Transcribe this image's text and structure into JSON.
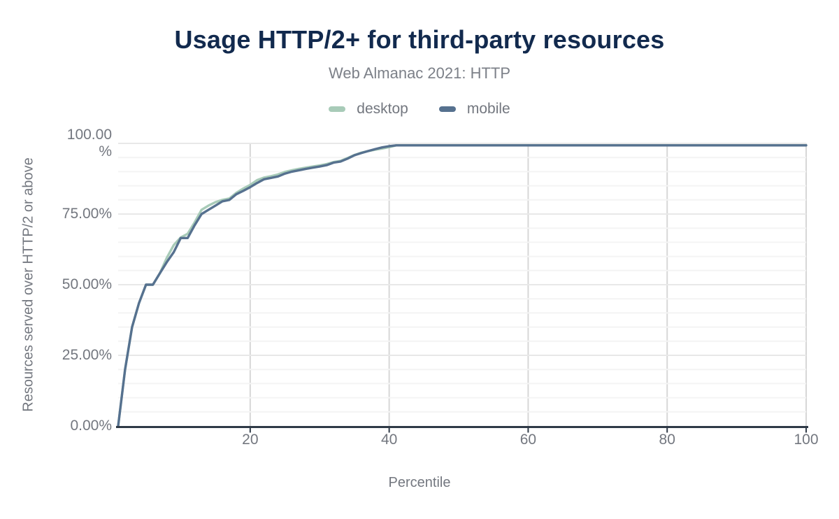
{
  "title": "Usage HTTP/2+ for third-party resources",
  "subtitle": "Web Almanac 2021: HTTP",
  "legend": [
    {
      "name": "desktop",
      "label": "desktop",
      "color": "#a8cbb8"
    },
    {
      "name": "mobile",
      "label": "mobile",
      "color": "#56718f"
    }
  ],
  "colors": {
    "title": "#122a4e",
    "muted_text": "#73777f",
    "axis_line": "#2f3a47",
    "gridline_vertical": "#d7d7d7",
    "gridline_major_h": "#e8e8e8",
    "gridline_minor_h": "#f4f4f4",
    "desktop": "#a8cbb8",
    "mobile": "#56718f"
  },
  "chart_data": {
    "type": "line",
    "title": "Usage HTTP/2+ for third-party resources",
    "subtitle": "Web Almanac 2021: HTTP",
    "xlabel": "Percentile",
    "ylabel": "Resources served over HTTP/2 or above",
    "xlim": [
      1,
      100
    ],
    "ylim": [
      0,
      100
    ],
    "grid": true,
    "legend_position": "top-center",
    "x_ticks": [
      20,
      40,
      60,
      80,
      100
    ],
    "y_ticks": [
      {
        "value": 0,
        "lines": [
          "0.00%"
        ]
      },
      {
        "value": 25,
        "lines": [
          "25.00%"
        ]
      },
      {
        "value": 50,
        "lines": [
          "50.00%"
        ]
      },
      {
        "value": 75,
        "lines": [
          "75.00%"
        ]
      },
      {
        "value": 100,
        "lines": [
          "100.00",
          "%"
        ]
      }
    ],
    "y_minor_step": 5,
    "x": [
      1,
      2,
      3,
      4,
      5,
      6,
      7,
      8,
      9,
      10,
      11,
      12,
      13,
      14,
      15,
      16,
      17,
      18,
      19,
      20,
      21,
      22,
      23,
      24,
      25,
      26,
      27,
      28,
      29,
      30,
      31,
      32,
      33,
      34,
      35,
      36,
      37,
      38,
      39,
      40,
      41,
      45,
      50,
      55,
      60,
      65,
      70,
      75,
      80,
      85,
      90,
      95,
      100
    ],
    "series": [
      {
        "name": "desktop",
        "color": "#a8cbb8",
        "values": [
          0,
          20,
          35,
          43.5,
          50,
          50,
          54,
          59.5,
          64,
          66.7,
          68,
          72,
          76.5,
          78,
          79.2,
          80,
          80.5,
          82.5,
          84,
          85.3,
          87,
          87.9,
          88.4,
          89,
          89.9,
          90.5,
          91,
          91.4,
          91.8,
          92.2,
          92.7,
          93.4,
          93.8,
          94.8,
          95.9,
          96.7,
          97.3,
          97.8,
          98.2,
          98.7,
          99.3,
          99.3,
          99.3,
          99.3,
          99.3,
          99.3,
          99.3,
          99.3,
          99.3,
          99.3,
          99.3,
          99.3,
          99.3
        ]
      },
      {
        "name": "mobile",
        "color": "#56718f",
        "values": [
          0,
          20,
          35,
          43.5,
          50,
          50,
          54,
          58,
          61.5,
          66.5,
          66.5,
          71,
          75,
          76.5,
          78,
          79.5,
          80,
          82,
          83.2,
          84.5,
          86,
          87.3,
          87.8,
          88.3,
          89.3,
          90,
          90.5,
          91,
          91.4,
          91.8,
          92.3,
          93.2,
          93.6,
          94.6,
          95.8,
          96.6,
          97.3,
          98,
          98.6,
          99,
          99.3,
          99.3,
          99.3,
          99.3,
          99.3,
          99.3,
          99.3,
          99.3,
          99.3,
          99.3,
          99.3,
          99.3,
          99.3
        ]
      }
    ]
  }
}
